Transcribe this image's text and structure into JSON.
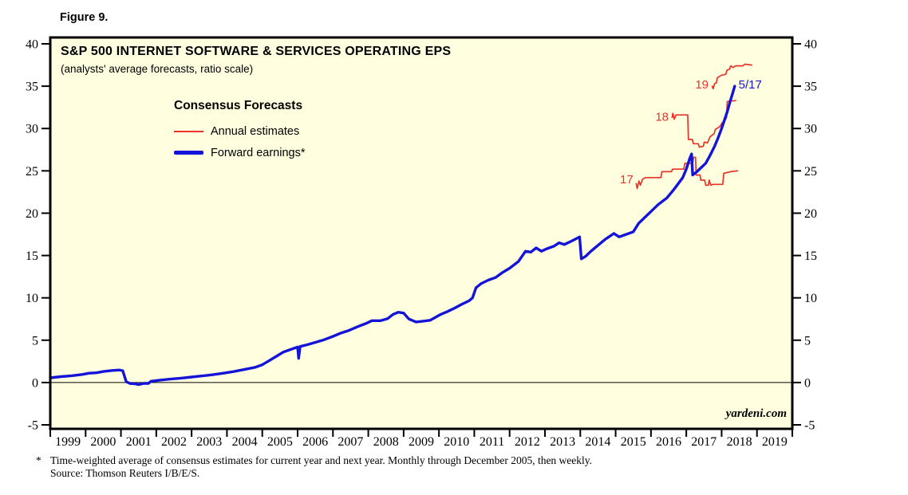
{
  "figure": {
    "label": "Figure 9."
  },
  "chart": {
    "title": "S&P 500 INTERNET SOFTWARE & SERVICES OPERATING EPS",
    "subtitle": "(analysts' average forecasts, ratio scale)"
  },
  "legend": {
    "title": "Consensus Forecasts",
    "items": [
      {
        "label": "Annual estimates"
      },
      {
        "label": "Forward earnings*"
      }
    ]
  },
  "watermark": {
    "text": "yardeni.com"
  },
  "footnote": {
    "marker": "*",
    "line1": "Time-weighted average of consensus estimates for current year and next year. Monthly through December 2005, then weekly.",
    "line2": "Source: Thomson Reuters I/B/E/S."
  },
  "colors": {
    "annual_estimates": "#e8332a",
    "forward_earnings": "#1414d8",
    "plot_background": "#ffffe0",
    "frame": "#000000"
  },
  "chart_data": {
    "type": "line",
    "title": "S&P 500 INTERNET SOFTWARE & SERVICES OPERATING EPS",
    "subtitle": "(analysts' average forecasts, ratio scale)",
    "x_axis": {
      "min_year": 1999,
      "max_year": 2020,
      "year_labels": [
        "1999",
        "2000",
        "2001",
        "2002",
        "2003",
        "2004",
        "2005",
        "2006",
        "2007",
        "2008",
        "2009",
        "2010",
        "2011",
        "2012",
        "2013",
        "2014",
        "2015",
        "2016",
        "2017",
        "2018",
        "2019"
      ]
    },
    "y_axis": {
      "min": -5,
      "max": 40,
      "ticks": [
        -5,
        0,
        5,
        10,
        15,
        20,
        25,
        30,
        35,
        40
      ],
      "sides": "both"
    },
    "zero_line": true,
    "legend_position": "top-left-inside",
    "series": [
      {
        "id": "annual-estimate-2017",
        "name": "2017 annual estimate",
        "label": "17",
        "color": "#e8332a",
        "width": 1.7,
        "points": [
          [
            2015.58,
            23.5
          ],
          [
            2015.61,
            22.9
          ],
          [
            2015.66,
            23.8
          ],
          [
            2015.7,
            23.3
          ],
          [
            2015.76,
            24.0
          ],
          [
            2015.84,
            24.2
          ],
          [
            2016.28,
            24.2
          ],
          [
            2016.31,
            24.9
          ],
          [
            2016.58,
            24.9
          ],
          [
            2016.61,
            25.2
          ],
          [
            2016.93,
            25.2
          ],
          [
            2016.96,
            25.9
          ],
          [
            2017.18,
            25.9
          ],
          [
            2017.21,
            26.6
          ],
          [
            2017.26,
            26.6
          ],
          [
            2017.28,
            24.5
          ],
          [
            2017.39,
            24.5
          ],
          [
            2017.41,
            23.9
          ],
          [
            2017.52,
            23.9
          ],
          [
            2017.55,
            23.3
          ],
          [
            2017.62,
            23.3
          ],
          [
            2017.65,
            23.9
          ],
          [
            2017.69,
            23.3
          ],
          [
            2017.75,
            23.4
          ],
          [
            2018.03,
            23.4
          ],
          [
            2018.06,
            24.7
          ],
          [
            2018.25,
            24.9
          ],
          [
            2018.45,
            25.0
          ]
        ]
      },
      {
        "id": "annual-estimate-2018",
        "name": "2018 annual estimate",
        "label": "18",
        "color": "#e8332a",
        "width": 1.7,
        "points": [
          [
            2016.6,
            31.3
          ],
          [
            2016.62,
            31.8
          ],
          [
            2016.66,
            31.1
          ],
          [
            2016.71,
            31.6
          ],
          [
            2017.04,
            31.6
          ],
          [
            2017.06,
            28.7
          ],
          [
            2017.17,
            28.7
          ],
          [
            2017.2,
            28.2
          ],
          [
            2017.34,
            28.2
          ],
          [
            2017.37,
            27.8
          ],
          [
            2017.48,
            27.9
          ],
          [
            2017.51,
            28.4
          ],
          [
            2017.6,
            28.3
          ],
          [
            2017.67,
            29.0
          ],
          [
            2017.79,
            29.4
          ],
          [
            2017.82,
            29.9
          ],
          [
            2017.94,
            30.2
          ],
          [
            2018.02,
            30.7
          ],
          [
            2018.1,
            31.0
          ],
          [
            2018.14,
            31.3
          ],
          [
            2018.16,
            33.2
          ],
          [
            2018.4,
            33.3
          ]
        ]
      },
      {
        "id": "annual-estimate-2019",
        "name": "2019 annual estimate",
        "label": "19",
        "color": "#e8332a",
        "width": 1.7,
        "points": [
          [
            2017.73,
            35.0
          ],
          [
            2017.76,
            34.7
          ],
          [
            2017.8,
            35.3
          ],
          [
            2017.85,
            35.4
          ],
          [
            2017.88,
            36.0
          ],
          [
            2018.0,
            36.3
          ],
          [
            2018.12,
            36.4
          ],
          [
            2018.15,
            36.9
          ],
          [
            2018.22,
            37.0
          ],
          [
            2018.26,
            37.4
          ],
          [
            2018.32,
            37.2
          ],
          [
            2018.4,
            37.4
          ],
          [
            2018.6,
            37.4
          ],
          [
            2018.66,
            37.6
          ],
          [
            2018.85,
            37.5
          ]
        ]
      },
      {
        "id": "forward-earnings",
        "name": "Forward earnings*",
        "label": "5/17",
        "color": "#1414d8",
        "width": 3.4,
        "points": [
          [
            1999.0,
            0.55
          ],
          [
            1999.3,
            0.7
          ],
          [
            1999.6,
            0.8
          ],
          [
            1999.9,
            0.95
          ],
          [
            2000.1,
            1.1
          ],
          [
            2000.3,
            1.15
          ],
          [
            2000.5,
            1.3
          ],
          [
            2000.75,
            1.42
          ],
          [
            2000.95,
            1.48
          ],
          [
            2001.05,
            1.4
          ],
          [
            2001.15,
            0.1
          ],
          [
            2001.25,
            -0.1
          ],
          [
            2001.4,
            -0.15
          ],
          [
            2001.5,
            -0.25
          ],
          [
            2001.65,
            -0.1
          ],
          [
            2001.78,
            -0.1
          ],
          [
            2001.85,
            0.15
          ],
          [
            2002.1,
            0.28
          ],
          [
            2002.4,
            0.4
          ],
          [
            2002.7,
            0.52
          ],
          [
            2003.0,
            0.65
          ],
          [
            2003.3,
            0.78
          ],
          [
            2003.6,
            0.92
          ],
          [
            2003.9,
            1.1
          ],
          [
            2004.2,
            1.3
          ],
          [
            2004.5,
            1.55
          ],
          [
            2004.8,
            1.8
          ],
          [
            2005.0,
            2.1
          ],
          [
            2005.2,
            2.6
          ],
          [
            2005.4,
            3.1
          ],
          [
            2005.6,
            3.6
          ],
          [
            2005.8,
            3.9
          ],
          [
            2006.0,
            4.2
          ],
          [
            2006.03,
            2.85
          ],
          [
            2006.07,
            4.25
          ],
          [
            2006.3,
            4.5
          ],
          [
            2006.55,
            4.8
          ],
          [
            2006.75,
            5.05
          ],
          [
            2007.0,
            5.45
          ],
          [
            2007.2,
            5.8
          ],
          [
            2007.45,
            6.15
          ],
          [
            2007.7,
            6.6
          ],
          [
            2007.95,
            7.0
          ],
          [
            2008.1,
            7.3
          ],
          [
            2008.35,
            7.3
          ],
          [
            2008.55,
            7.55
          ],
          [
            2008.7,
            8.05
          ],
          [
            2008.85,
            8.3
          ],
          [
            2009.0,
            8.2
          ],
          [
            2009.15,
            7.5
          ],
          [
            2009.35,
            7.15
          ],
          [
            2009.55,
            7.25
          ],
          [
            2009.75,
            7.35
          ],
          [
            2009.9,
            7.7
          ],
          [
            2010.05,
            8.05
          ],
          [
            2010.25,
            8.4
          ],
          [
            2010.45,
            8.8
          ],
          [
            2010.65,
            9.25
          ],
          [
            2010.85,
            9.65
          ],
          [
            2010.95,
            10.0
          ],
          [
            2011.05,
            11.2
          ],
          [
            2011.2,
            11.7
          ],
          [
            2011.4,
            12.1
          ],
          [
            2011.6,
            12.4
          ],
          [
            2011.8,
            13.0
          ],
          [
            2012.0,
            13.5
          ],
          [
            2012.25,
            14.3
          ],
          [
            2012.45,
            15.5
          ],
          [
            2012.6,
            15.4
          ],
          [
            2012.75,
            15.9
          ],
          [
            2012.9,
            15.5
          ],
          [
            2013.05,
            15.8
          ],
          [
            2013.25,
            16.1
          ],
          [
            2013.4,
            16.5
          ],
          [
            2013.55,
            16.3
          ],
          [
            2013.75,
            16.7
          ],
          [
            2013.98,
            17.2
          ],
          [
            2014.03,
            14.6
          ],
          [
            2014.15,
            14.9
          ],
          [
            2014.3,
            15.5
          ],
          [
            2014.5,
            16.2
          ],
          [
            2014.7,
            16.9
          ],
          [
            2014.95,
            17.6
          ],
          [
            2015.1,
            17.2
          ],
          [
            2015.3,
            17.5
          ],
          [
            2015.5,
            17.8
          ],
          [
            2015.65,
            18.8
          ],
          [
            2015.9,
            19.8
          ],
          [
            2016.0,
            20.2
          ],
          [
            2016.2,
            21.0
          ],
          [
            2016.45,
            21.8
          ],
          [
            2016.65,
            22.8
          ],
          [
            2016.9,
            24.2
          ],
          [
            2017.0,
            25.2
          ],
          [
            2017.1,
            26.5
          ],
          [
            2017.15,
            27.0
          ],
          [
            2017.18,
            24.5
          ],
          [
            2017.3,
            24.9
          ],
          [
            2017.45,
            25.5
          ],
          [
            2017.55,
            25.9
          ],
          [
            2017.67,
            26.8
          ],
          [
            2017.8,
            27.9
          ],
          [
            2017.9,
            28.9
          ],
          [
            2018.0,
            30.0
          ],
          [
            2018.08,
            31.0
          ],
          [
            2018.16,
            32.0
          ],
          [
            2018.24,
            33.2
          ],
          [
            2018.3,
            34.0
          ],
          [
            2018.37,
            35.0
          ]
        ]
      }
    ],
    "annotations": [
      {
        "text": "17",
        "x": 2015.5,
        "y": 24.0,
        "anchor": "end",
        "color": "#e8332a"
      },
      {
        "text": "18",
        "x": 2016.5,
        "y": 31.4,
        "anchor": "end",
        "color": "#e8332a"
      },
      {
        "text": "19",
        "x": 2017.63,
        "y": 35.2,
        "anchor": "end",
        "color": "#e8332a"
      },
      {
        "text": "5/17",
        "x": 2018.48,
        "y": 35.2,
        "anchor": "start",
        "color": "#1414d8"
      }
    ]
  }
}
